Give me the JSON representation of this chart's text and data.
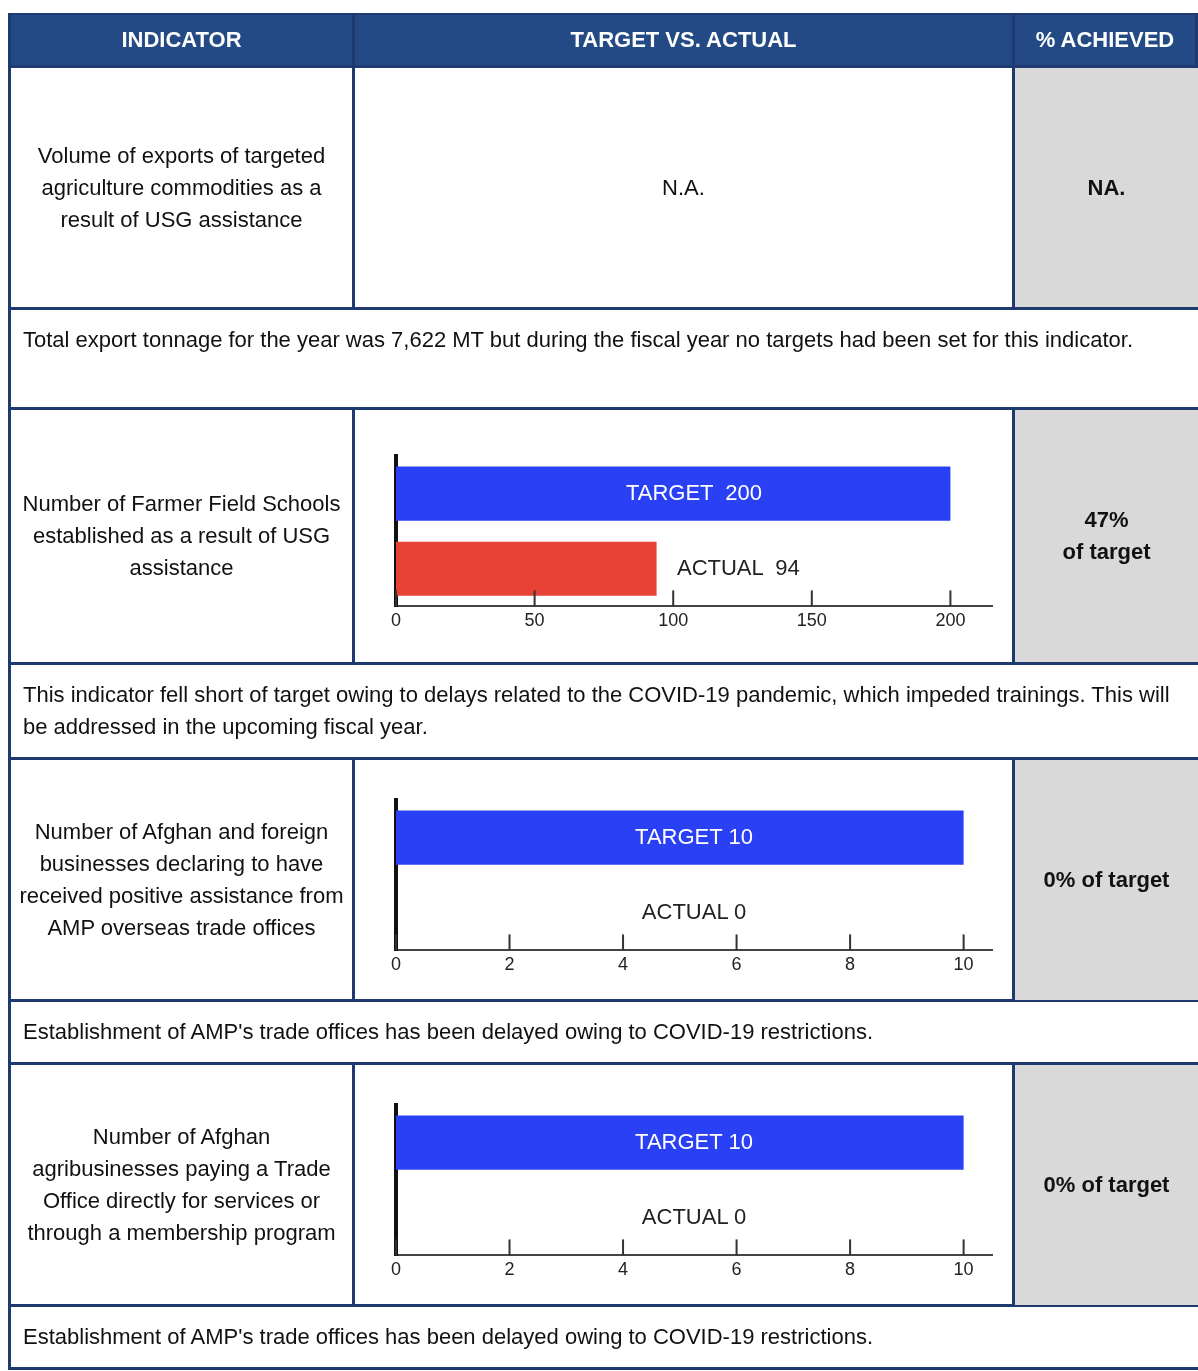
{
  "chart_data": [
    {
      "type": "other",
      "annotations": [
        "INDICATOR",
        "TARGET VS. ACTUAL",
        "% ACHIEVED"
      ]
    },
    {
      "type": "other",
      "title": "Volume of exports of targeted agriculture commodities as a result of USG assistance",
      "annotations": [
        "N.A.",
        "NA.",
        "Total export tonnage for the year was 7,622 MT but during the fiscal year no targets had been set for this indicator."
      ]
    },
    {
      "type": "bar",
      "orientation": "horizontal",
      "title": "Number of Farmer Field Schools established as a result of USG assistance",
      "categories": [
        null,
        null
      ],
      "values": [
        200,
        94
      ],
      "colors": [
        "#2a40f5",
        "#e84236"
      ],
      "value_labels": [
        "TARGET  200",
        "ACTUAL  94"
      ],
      "xlim": [
        0,
        215
      ],
      "xticks": [
        0,
        50,
        100,
        150,
        200
      ],
      "annotations": [
        "47%\nof target",
        "This indicator fell short of target owing to delays related to the COVID-19 pandemic, which impeded trainings. This will be addressed in the upcoming fiscal year."
      ]
    },
    {
      "type": "bar",
      "orientation": "horizontal",
      "title": "Number of Afghan and foreign businesses declaring to have received positive assistance from AMP overseas trade offices",
      "categories": [
        null,
        null
      ],
      "values": [
        10,
        0
      ],
      "colors": [
        "#2a40f5",
        "#e84236"
      ],
      "value_labels": [
        "TARGET 10",
        "ACTUAL 0"
      ],
      "xlim": [
        0,
        10.5
      ],
      "xticks": [
        0,
        2,
        4,
        6,
        8,
        10
      ],
      "annotations": [
        "0% of target",
        "Establishment of AMP's trade offices has been delayed owing to COVID-19 restrictions."
      ]
    },
    {
      "type": "bar",
      "orientation": "horizontal",
      "title": "Number of Afghan agribusinesses paying a Trade Office directly for services or through a membership program",
      "categories": [
        null,
        null
      ],
      "values": [
        10,
        0
      ],
      "colors": [
        "#2a40f5",
        "#e84236"
      ],
      "value_labels": [
        "TARGET 10",
        "ACTUAL 0"
      ],
      "xlim": [
        0,
        10.5
      ],
      "xticks": [
        0,
        2,
        4,
        6,
        8,
        10
      ],
      "annotations": [
        "0% of target",
        "Establishment of AMP's trade offices has been delayed owing to COVID-19 restrictions."
      ]
    }
  ]
}
